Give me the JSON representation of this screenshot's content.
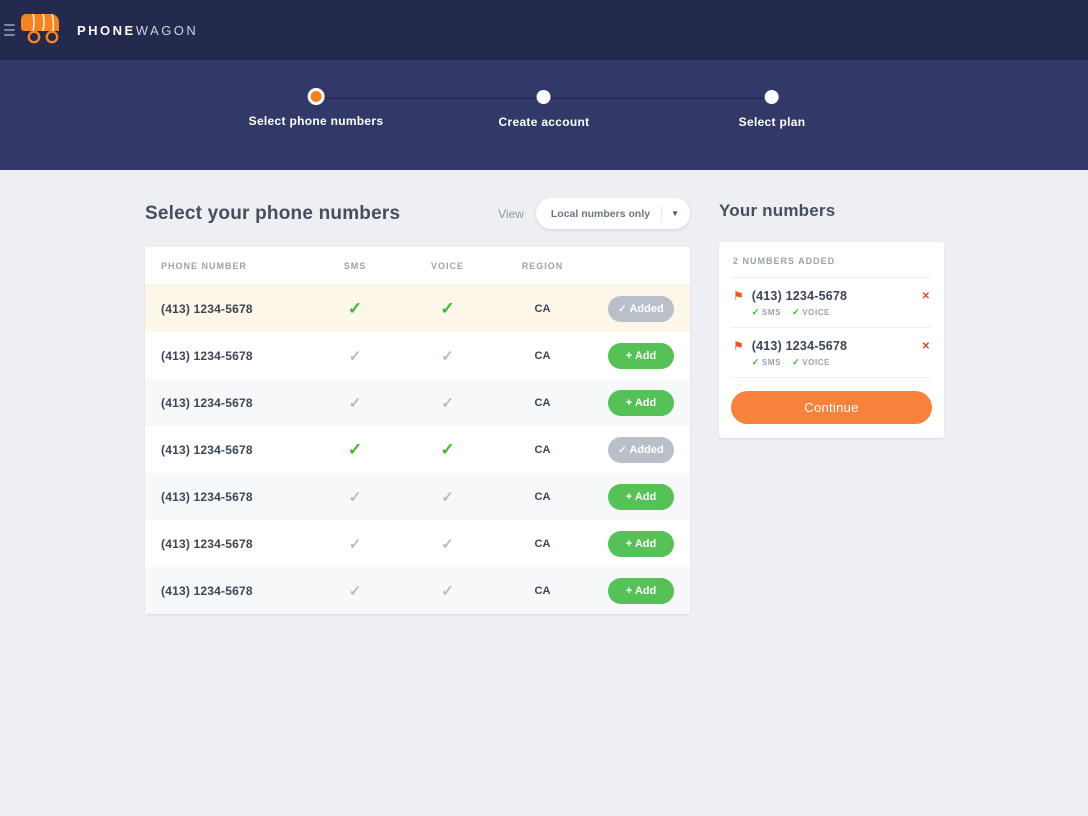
{
  "header": {
    "brand_bold": "PHONE",
    "brand_light": "WAGON"
  },
  "icons": {
    "check": "✓",
    "flag": "⚑",
    "close": "✕",
    "caret": "▼"
  },
  "colors": {
    "accent_orange": "#f5821f",
    "button_orange": "#f8813c",
    "green": "#55c157",
    "check_green": "#3eb82d",
    "added_gray": "#b9c0c9",
    "topbar_navy": "#242a4d",
    "stepper_navy": "#323968",
    "remove_red": "#e8432b",
    "highlight_row": "#fcf7e9"
  },
  "stepper": {
    "steps": [
      {
        "label": "Select phone numbers",
        "active": true
      },
      {
        "label": "Create account",
        "active": false
      },
      {
        "label": "Select plan",
        "active": false
      }
    ]
  },
  "main": {
    "title": "Select your phone numbers",
    "view_label": "View",
    "view_dropdown_value": "Local numbers only",
    "add_label": "+ Add",
    "added_label": "Added",
    "table": {
      "headers": [
        "PHONE NUMBER",
        "SMS",
        "VOICE",
        "REGION"
      ],
      "rows": [
        {
          "phone": "(413) 1234-5678",
          "sms": true,
          "voice": true,
          "region": "CA",
          "added": true,
          "highlight": true
        },
        {
          "phone": "(413) 1234-5678",
          "sms": false,
          "voice": false,
          "region": "CA",
          "added": false,
          "highlight": false
        },
        {
          "phone": "(413) 1234-5678",
          "sms": false,
          "voice": false,
          "region": "CA",
          "added": false,
          "highlight": false
        },
        {
          "phone": "(413) 1234-5678",
          "sms": true,
          "voice": true,
          "region": "CA",
          "added": true,
          "highlight": false
        },
        {
          "phone": "(413) 1234-5678",
          "sms": false,
          "voice": false,
          "region": "CA",
          "added": false,
          "highlight": false
        },
        {
          "phone": "(413) 1234-5678",
          "sms": false,
          "voice": false,
          "region": "CA",
          "added": false,
          "highlight": false
        },
        {
          "phone": "(413) 1234-5678",
          "sms": false,
          "voice": false,
          "region": "CA",
          "added": false,
          "highlight": false
        }
      ]
    }
  },
  "sidebar": {
    "title": "Your numbers",
    "count_label": "2 NUMBERS ADDED",
    "numbers": [
      {
        "phone": "(413) 1234-5678",
        "sms": "SMS",
        "voice": "VOICE"
      },
      {
        "phone": "(413) 1234-5678",
        "sms": "SMS",
        "voice": "VOICE"
      }
    ],
    "continue_label": "Continue"
  }
}
